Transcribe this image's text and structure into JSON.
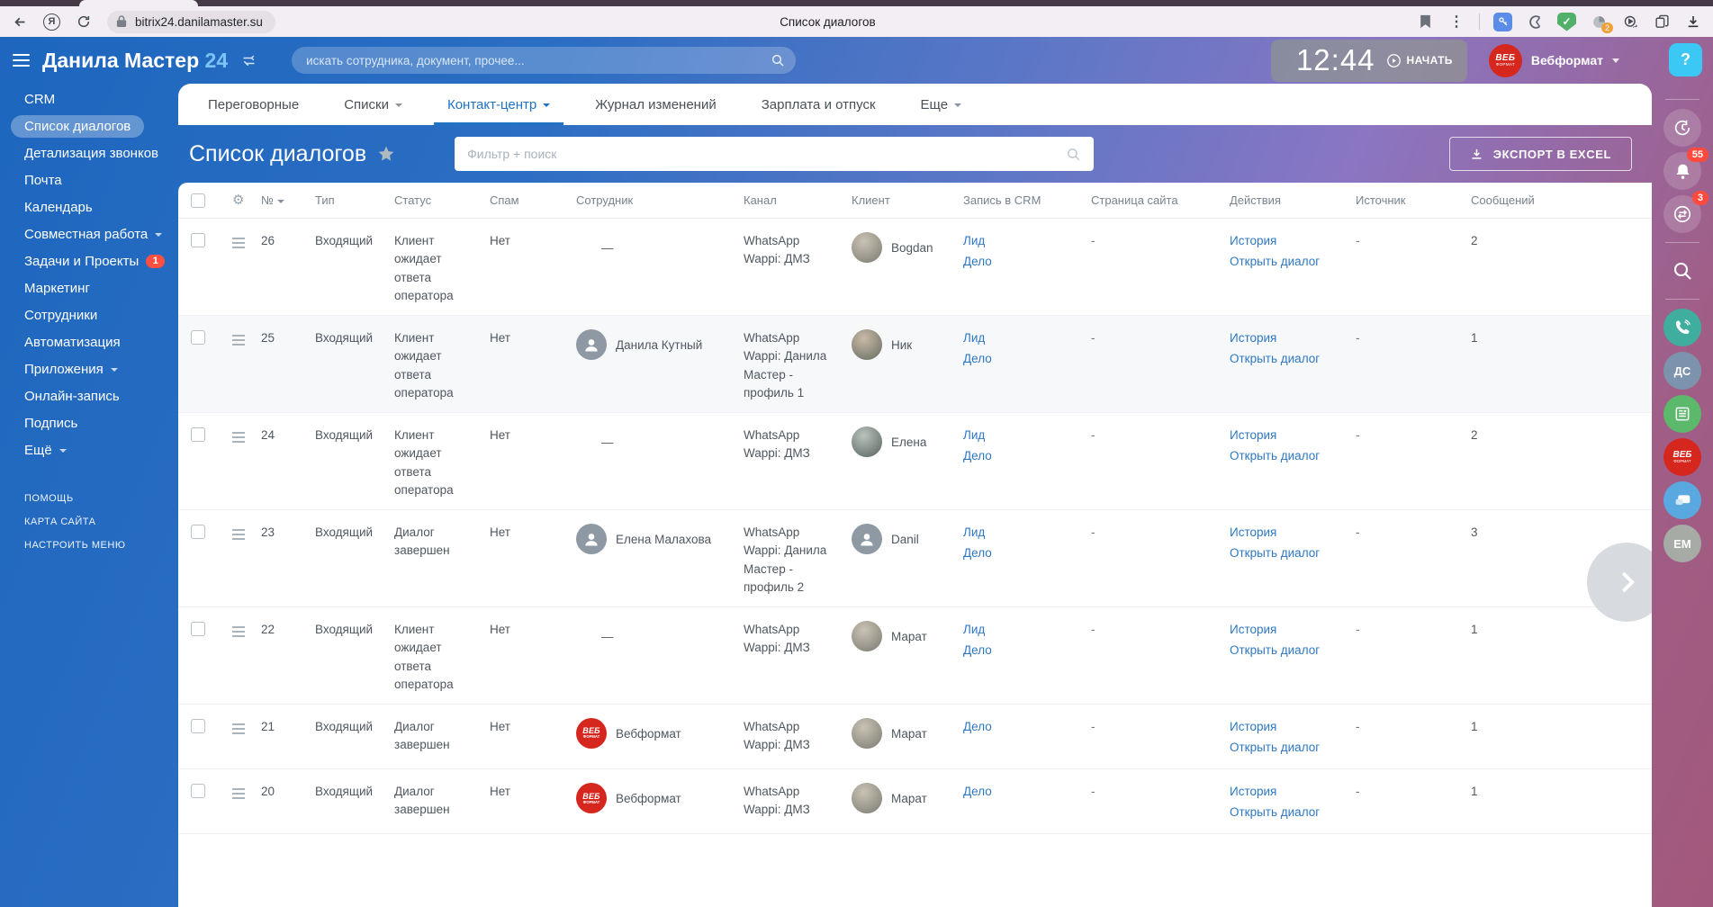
{
  "colors": {
    "accent_blue": "#1f72c4",
    "link_blue": "#2e78c2",
    "badge_red": "#ff4a3d",
    "brand_red": "#d6271e",
    "help_cyan": "#3bc8f5"
  },
  "browser": {
    "url": "bitrix24.danilamaster.su",
    "tab_title": "Список диалогов",
    "ext_badge": "2",
    "yandex_letter": "Я"
  },
  "header": {
    "logo_text": "Данила Мастер",
    "logo_number": "24",
    "search_placeholder": "искать сотрудника, документ, прочее...",
    "clock": "12:44",
    "start_label": "НАЧАТЬ",
    "user_name": "Вебформат",
    "brand_line1": "ВЕБ",
    "brand_line2": "ФОРМАТ",
    "help_label": "?"
  },
  "sidebar": {
    "items": [
      {
        "label": "CRM"
      },
      {
        "label": "Список диалогов",
        "active": true
      },
      {
        "label": "Детализация звонков"
      },
      {
        "label": "Почта"
      },
      {
        "label": "Календарь"
      },
      {
        "label": "Совместная работа",
        "caret": true
      },
      {
        "label": "Задачи и Проекты",
        "badge": "1"
      },
      {
        "label": "Маркетинг"
      },
      {
        "label": "Сотрудники"
      },
      {
        "label": "Автоматизация"
      },
      {
        "label": "Приложения",
        "caret": true
      },
      {
        "label": "Онлайн-запись"
      },
      {
        "label": "Подпись"
      },
      {
        "label": "Ещё",
        "caret": true
      }
    ],
    "footer_items": [
      {
        "label": "ПОМОЩЬ"
      },
      {
        "label": "КАРТА САЙТА"
      },
      {
        "label": "НАСТРОИТЬ МЕНЮ"
      }
    ]
  },
  "tabs": [
    {
      "label": "Переговорные"
    },
    {
      "label": "Списки",
      "caret": true
    },
    {
      "label": "Контакт-центр",
      "caret": true,
      "active": true
    },
    {
      "label": "Журнал изменений"
    },
    {
      "label": "Зарплата и отпуск"
    },
    {
      "label": "Еще",
      "caret": true
    }
  ],
  "page": {
    "title": "Список диалогов",
    "filter_placeholder": "Фильтр + поиск",
    "export_label": "ЭКСПОРТ В EXCEL"
  },
  "table": {
    "columns": [
      "№",
      "Тип",
      "Статус",
      "Спам",
      "Сотрудник",
      "Канал",
      "Клиент",
      "Запись в CRM",
      "Страница сайта",
      "Действия",
      "Источник",
      "Сообщений"
    ],
    "rows": [
      {
        "num": "26",
        "type": "Входящий",
        "status": "Клиент ожидает ответа оператора",
        "spam": "Нет",
        "employee": {
          "kind": "none",
          "name": "—"
        },
        "channel": "WhatsApp Wappi: ДМЗ",
        "client": {
          "name": "Bogdan",
          "kind": "photo1"
        },
        "crm": [
          "Лид",
          "Дело"
        ],
        "site_page": "-",
        "actions": [
          "История",
          "Открыть диалог"
        ],
        "source": "-",
        "messages": "2"
      },
      {
        "num": "25",
        "type": "Входящий",
        "status": "Клиент ожидает ответа оператора",
        "spam": "Нет",
        "shaded": true,
        "employee": {
          "kind": "person",
          "name": "Данила Кутный"
        },
        "channel": "WhatsApp Wappi: Данила Мастер - профиль 1",
        "client": {
          "name": "Ник",
          "kind": "photo2"
        },
        "crm": [
          "Лид",
          "Дело"
        ],
        "site_page": "-",
        "actions": [
          "История",
          "Открыть диалог"
        ],
        "source": "-",
        "messages": "1"
      },
      {
        "num": "24",
        "type": "Входящий",
        "status": "Клиент ожидает ответа оператора",
        "spam": "Нет",
        "employee": {
          "kind": "none",
          "name": "—"
        },
        "channel": "WhatsApp Wappi: ДМЗ",
        "client": {
          "name": "Елена",
          "kind": "photo3"
        },
        "crm": [
          "Лид",
          "Дело"
        ],
        "site_page": "-",
        "actions": [
          "История",
          "Открыть диалог"
        ],
        "source": "-",
        "messages": "2"
      },
      {
        "num": "23",
        "type": "Входящий",
        "status": "Диалог завершен",
        "spam": "Нет",
        "employee": {
          "kind": "person",
          "name": "Елена Малахова"
        },
        "channel": "WhatsApp Wappi: Данила Мастер - профиль 2",
        "client": {
          "name": "Danil",
          "kind": "person"
        },
        "crm": [
          "Лид",
          "Дело"
        ],
        "site_page": "-",
        "actions": [
          "История",
          "Открыть диалог"
        ],
        "source": "-",
        "messages": "3"
      },
      {
        "num": "22",
        "type": "Входящий",
        "status": "Клиент ожидает ответа оператора",
        "spam": "Нет",
        "employee": {
          "kind": "none",
          "name": "—"
        },
        "channel": "WhatsApp Wappi: ДМЗ",
        "client": {
          "name": "Марат",
          "kind": "photo1"
        },
        "crm": [
          "Лид",
          "Дело"
        ],
        "site_page": "-",
        "actions": [
          "История",
          "Открыть диалог"
        ],
        "source": "-",
        "messages": "1"
      },
      {
        "num": "21",
        "type": "Входящий",
        "status": "Диалог завершен",
        "spam": "Нет",
        "employee": {
          "kind": "logo",
          "name": "Вебформат"
        },
        "channel": "WhatsApp Wappi: ДМЗ",
        "client": {
          "name": "Марат",
          "kind": "photo1"
        },
        "crm": [
          "Дело"
        ],
        "site_page": "-",
        "actions": [
          "История",
          "Открыть диалог"
        ],
        "source": "-",
        "messages": "1"
      },
      {
        "num": "20",
        "type": "Входящий",
        "status": "Диалог завершен",
        "spam": "Нет",
        "employee": {
          "kind": "logo",
          "name": "Вебформат"
        },
        "channel": "WhatsApp Wappi: ДМЗ",
        "client": {
          "name": "Марат",
          "kind": "photo1"
        },
        "crm": [
          "Дело"
        ],
        "site_page": "-",
        "actions": [
          "История",
          "Открыть диалог"
        ],
        "source": "-",
        "messages": "1"
      }
    ]
  },
  "right_rail": {
    "notifications_badge": "55",
    "dialogs_badge": "3",
    "ds_label": "ДС",
    "em_label": "EM",
    "brand_line1": "ВЕБ",
    "brand_line2": "ФОРМАТ"
  }
}
